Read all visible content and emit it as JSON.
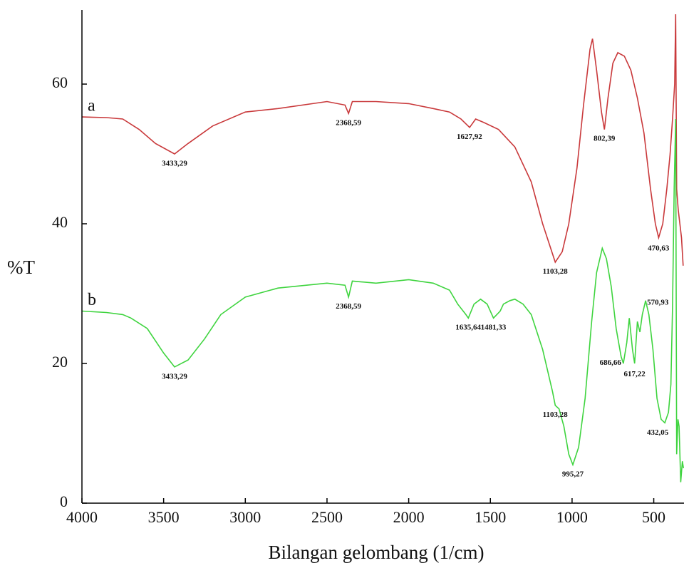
{
  "chart_data": {
    "type": "line",
    "x_label": "Bilangan gelombang (1/cm)",
    "y_label": "%T",
    "xlim": [
      4000,
      315
    ],
    "ylim": [
      0,
      70
    ],
    "xticks": [
      4000,
      3500,
      3000,
      2500,
      2000,
      1500,
      1000,
      500
    ],
    "yticks": [
      0,
      20,
      40,
      60
    ],
    "series": [
      {
        "name": "a",
        "color": "#c9393b",
        "x": [
          4000,
          3850,
          3750,
          3650,
          3550,
          3433,
          3350,
          3200,
          3000,
          2800,
          2500,
          2390,
          2368,
          2345,
          2200,
          2000,
          1850,
          1750,
          1680,
          1627,
          1590,
          1540,
          1450,
          1350,
          1250,
          1180,
          1103,
          1060,
          1020,
          970,
          930,
          890,
          875,
          850,
          820,
          802,
          780,
          750,
          720,
          680,
          640,
          600,
          560,
          520,
          490,
          470,
          445,
          420,
          400,
          385,
          372,
          366,
          360,
          350,
          340,
          330,
          320
        ],
        "values": [
          55.3,
          55.2,
          55,
          53.5,
          51.5,
          50,
          51.5,
          54,
          56,
          56.5,
          57.5,
          57,
          55.8,
          57.5,
          57.5,
          57.2,
          56.5,
          56,
          55,
          53.8,
          55,
          54.5,
          53.5,
          51,
          46,
          40,
          34.5,
          36,
          40,
          48,
          57,
          65,
          66.5,
          62,
          56,
          53.5,
          58,
          63,
          64.5,
          64,
          62,
          58,
          53,
          45,
          40,
          38,
          40,
          45,
          50,
          55,
          60,
          70,
          45,
          42,
          40,
          38,
          34
        ]
      },
      {
        "name": "b",
        "color": "#3fd43f",
        "x": [
          4000,
          3850,
          3750,
          3700,
          3600,
          3500,
          3433,
          3350,
          3250,
          3150,
          3000,
          2800,
          2500,
          2390,
          2368,
          2345,
          2200,
          2000,
          1850,
          1750,
          1700,
          1650,
          1635,
          1600,
          1560,
          1520,
          1481,
          1440,
          1420,
          1380,
          1350,
          1300,
          1250,
          1180,
          1120,
          1103,
          1080,
          1050,
          1020,
          995,
          960,
          920,
          880,
          850,
          815,
          790,
          760,
          730,
          700,
          686,
          665,
          650,
          630,
          617,
          600,
          585,
          570,
          550,
          530,
          505,
          480,
          455,
          432,
          410,
          395,
          385,
          375,
          366,
          360,
          352,
          345,
          335,
          325,
          318
        ],
        "values": [
          27.5,
          27.3,
          27,
          26.5,
          25,
          21.5,
          19.5,
          20.5,
          23.5,
          27,
          29.5,
          30.8,
          31.5,
          31.2,
          29.5,
          31.8,
          31.5,
          32,
          31.5,
          30.5,
          28.5,
          27,
          26.5,
          28.5,
          29.2,
          28.5,
          26.5,
          27.5,
          28.5,
          29,
          29.2,
          28.5,
          27,
          22,
          16,
          14,
          13.5,
          11,
          7,
          5.5,
          8,
          15,
          26,
          33,
          36.5,
          35,
          31,
          25,
          21,
          20,
          23,
          26.5,
          22,
          20,
          26,
          24.5,
          27,
          29,
          27,
          22,
          15,
          12,
          11.5,
          13,
          17,
          28,
          45,
          55,
          7,
          12,
          11,
          3,
          6,
          5
        ],
        "peaks": []
      }
    ],
    "peaks": [
      {
        "series": 0,
        "value": 3433.29,
        "label": "3433,29"
      },
      {
        "series": 0,
        "value": 2368.59,
        "label": "2368,59"
      },
      {
        "series": 0,
        "value": 1627.92,
        "label": "1627,92"
      },
      {
        "series": 0,
        "value": 1103.28,
        "label": "1103,28"
      },
      {
        "series": 0,
        "value": 802.39,
        "label": "802,39"
      },
      {
        "series": 0,
        "value": 470.63,
        "label": "470,63"
      },
      {
        "series": 1,
        "value": 3433.29,
        "label": "3433,29"
      },
      {
        "series": 1,
        "value": 2368.59,
        "label": "2368,59"
      },
      {
        "series": 1,
        "value": 1635.64,
        "label": "1635,64"
      },
      {
        "series": 1,
        "value": 1481.33,
        "label": "1481,33"
      },
      {
        "series": 1,
        "value": 1103.28,
        "label": "1103,28"
      },
      {
        "series": 1,
        "value": 995.27,
        "label": "995,27"
      },
      {
        "series": 1,
        "value": 686.66,
        "label": "686,66"
      },
      {
        "series": 1,
        "value": 617.22,
        "label": "617,22"
      },
      {
        "series": 1,
        "value": 570.93,
        "label": "570,93"
      },
      {
        "series": 1,
        "value": 432.05,
        "label": "432,05"
      }
    ]
  }
}
